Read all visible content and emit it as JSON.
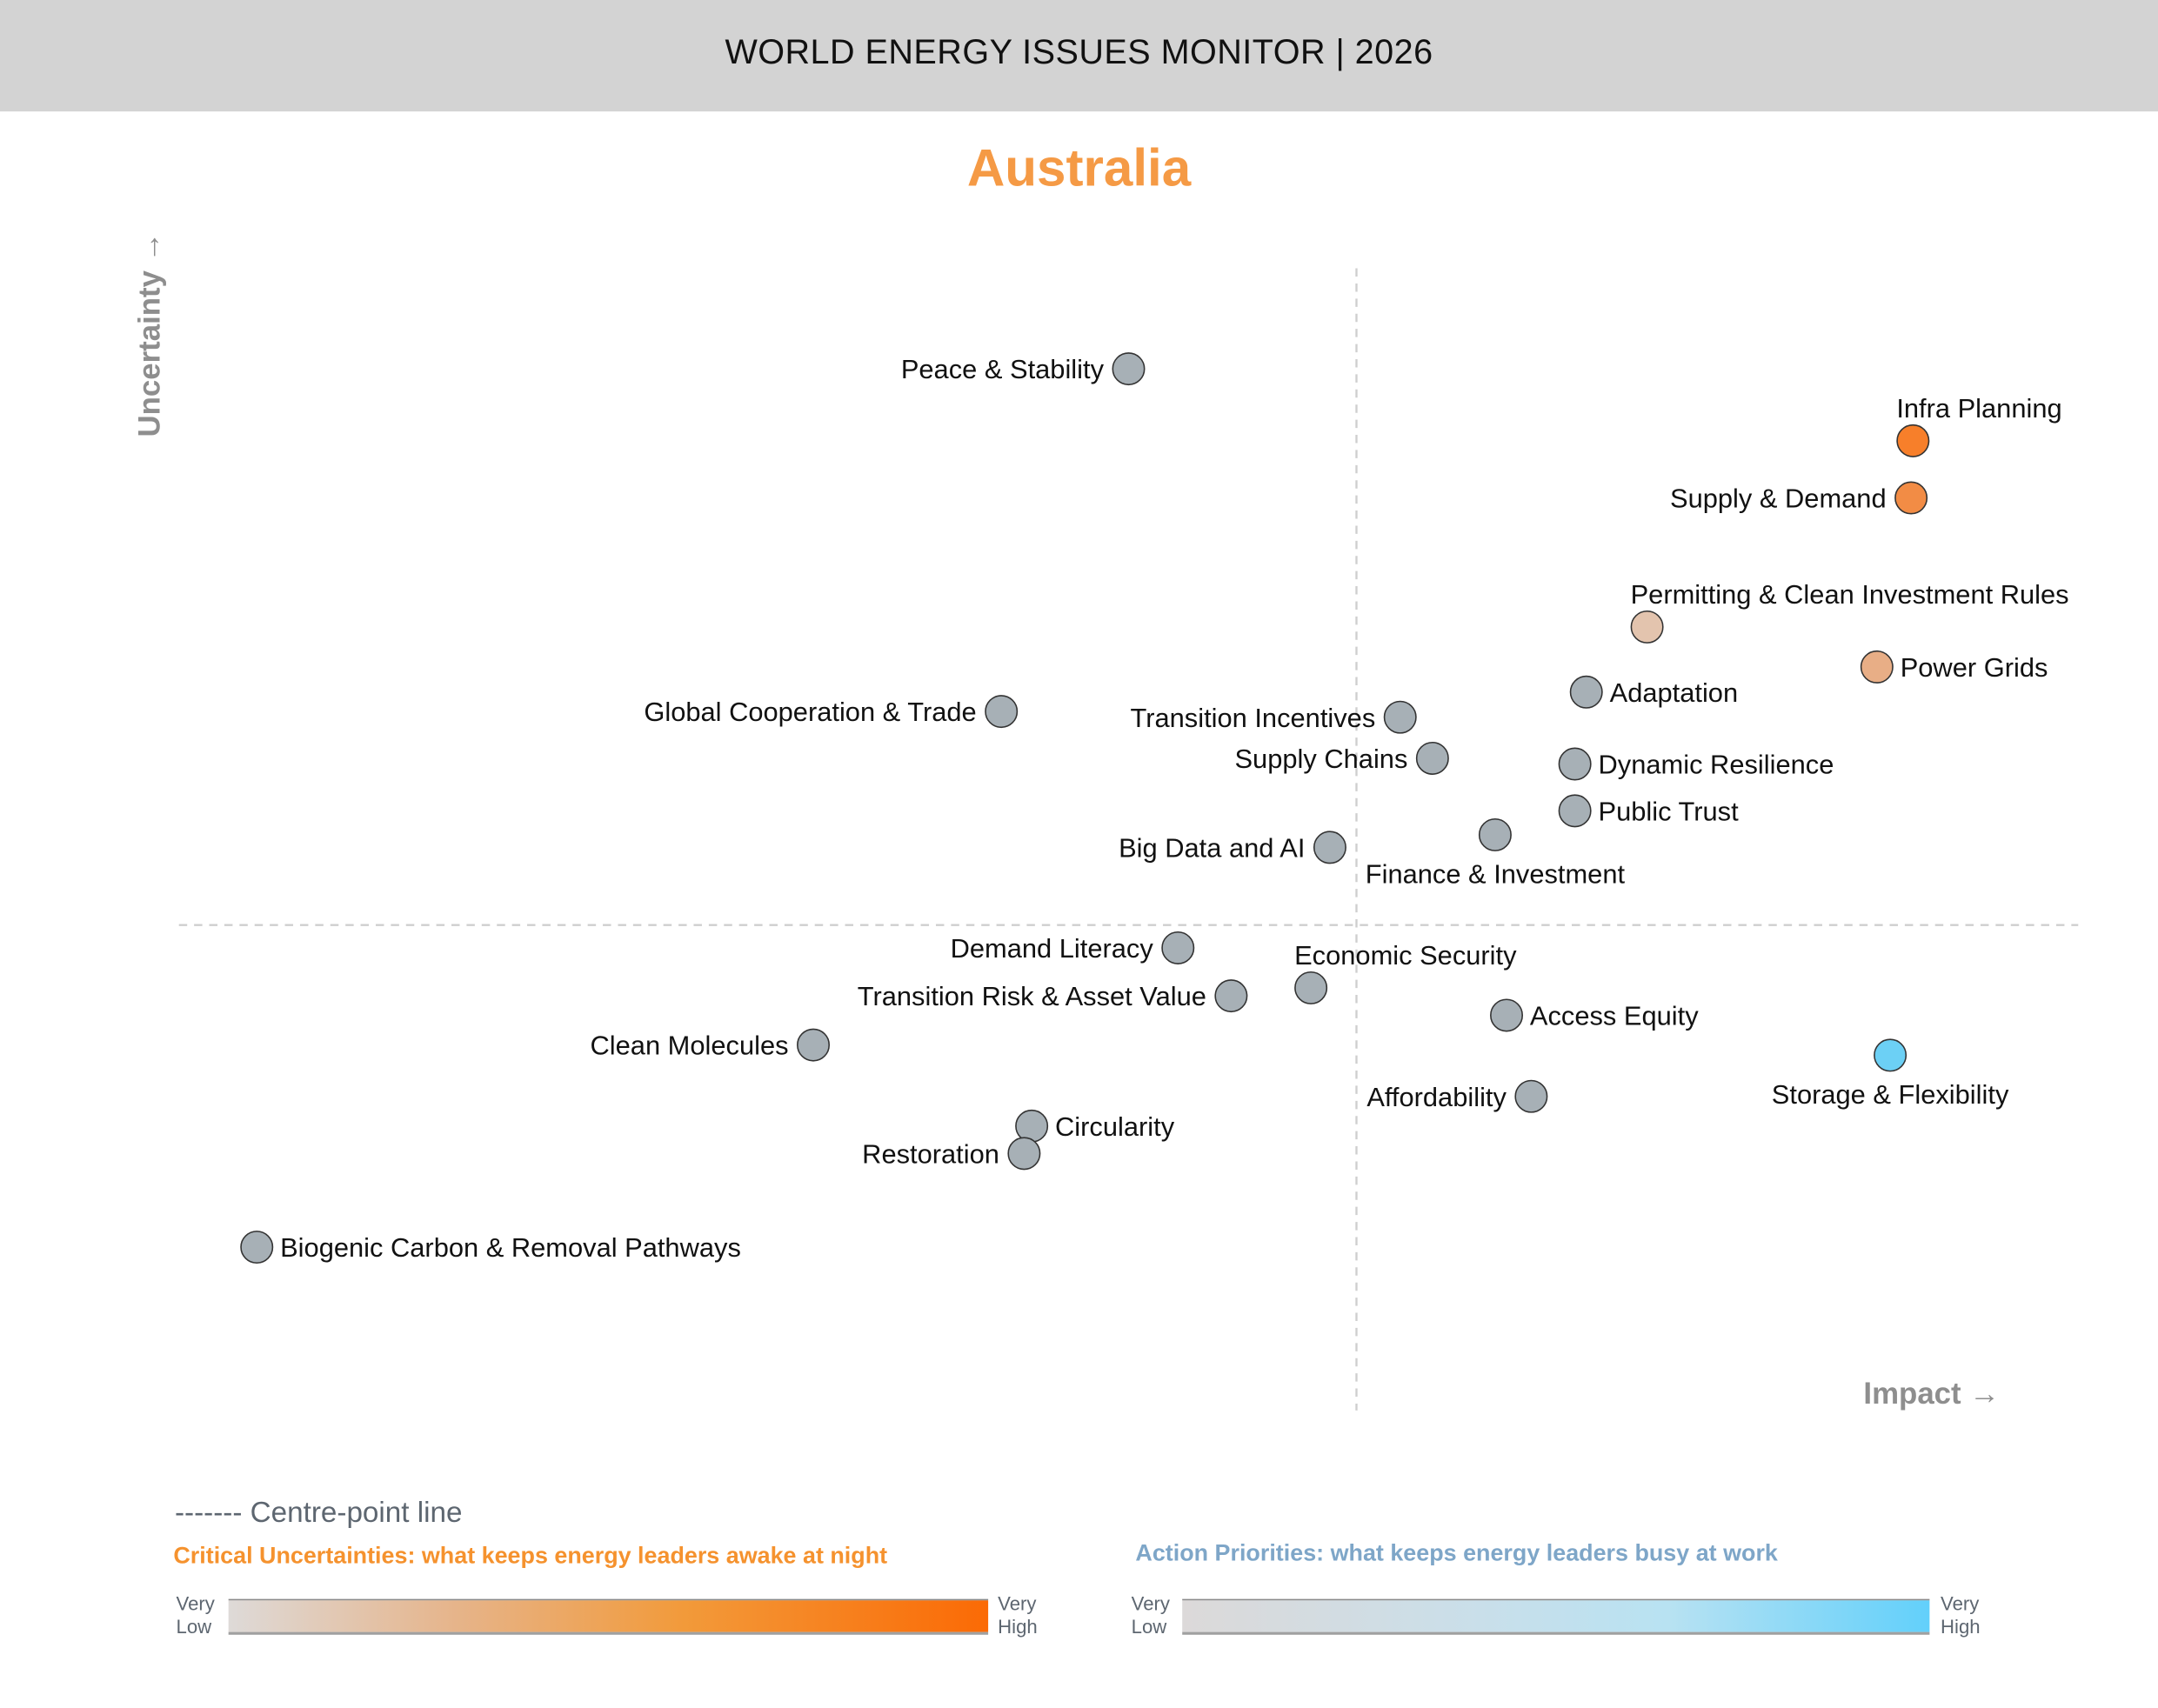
{
  "header": {
    "title": "WORLD ENERGY ISSUES MONITOR | 2026"
  },
  "country": "Australia",
  "chart_data": {
    "type": "scatter",
    "xlabel": "Impact →",
    "ylabel": "Uncertainty →",
    "xlim": [
      0,
      10
    ],
    "ylim": [
      0,
      10
    ],
    "centre": [
      6.2,
      4.25
    ],
    "grid": false,
    "points": [
      {
        "label": "Peace & Stability",
        "x": 5.0,
        "y": 9.12,
        "color": "#a7b0b6",
        "label_pos": "left"
      },
      {
        "label": "Infra Planning",
        "x": 9.13,
        "y": 8.49,
        "color": "#f77f2a",
        "label_pos": "above"
      },
      {
        "label": "Supply & Demand",
        "x": 9.12,
        "y": 7.99,
        "color": "#f28c45",
        "label_pos": "left"
      },
      {
        "label": "Permitting & Clean Investment Rules",
        "x": 7.73,
        "y": 6.86,
        "color": "#e3c4ae",
        "label_pos": "above"
      },
      {
        "label": "Power Grids",
        "x": 8.94,
        "y": 6.51,
        "color": "#e8ae86",
        "label_pos": "right"
      },
      {
        "label": "Adaptation",
        "x": 7.41,
        "y": 6.29,
        "color": "#a7b0b6",
        "label_pos": "right"
      },
      {
        "label": "Global Cooperation & Trade",
        "x": 4.33,
        "y": 6.12,
        "color": "#a7b0b6",
        "label_pos": "left"
      },
      {
        "label": "Transition Incentives",
        "x": 6.43,
        "y": 6.07,
        "color": "#a7b0b6",
        "label_pos": "left"
      },
      {
        "label": "Supply Chains",
        "x": 6.6,
        "y": 5.71,
        "color": "#a7b0b6",
        "label_pos": "left"
      },
      {
        "label": "Dynamic Resilience",
        "x": 7.35,
        "y": 5.66,
        "color": "#a7b0b6",
        "label_pos": "right"
      },
      {
        "label": "Public Trust",
        "x": 7.35,
        "y": 5.25,
        "color": "#a7b0b6",
        "label_pos": "right"
      },
      {
        "label": "Finance & Investment",
        "x": 6.93,
        "y": 5.04,
        "color": "#a7b0b6",
        "label_pos": "below"
      },
      {
        "label": "Big Data and AI",
        "x": 6.06,
        "y": 4.93,
        "color": "#a7b0b6",
        "label_pos": "left"
      },
      {
        "label": "Demand Literacy",
        "x": 5.26,
        "y": 4.05,
        "color": "#a7b0b6",
        "label_pos": "left"
      },
      {
        "label": "Economic Security",
        "x": 5.96,
        "y": 3.7,
        "color": "#a7b0b6",
        "label_pos": "above"
      },
      {
        "label": "Transition Risk & Asset Value",
        "x": 5.54,
        "y": 3.63,
        "color": "#a7b0b6",
        "label_pos": "left"
      },
      {
        "label": "Access Equity",
        "x": 6.99,
        "y": 3.46,
        "color": "#a7b0b6",
        "label_pos": "right"
      },
      {
        "label": "Clean Molecules",
        "x": 3.34,
        "y": 3.2,
        "color": "#a7b0b6",
        "label_pos": "left"
      },
      {
        "label": "Storage & Flexibility",
        "x": 9.01,
        "y": 3.11,
        "color": "#6cd0f5",
        "label_pos": "below"
      },
      {
        "label": "Affordability",
        "x": 7.12,
        "y": 2.75,
        "color": "#a7b0b6",
        "label_pos": "left"
      },
      {
        "label": "Circularity",
        "x": 4.49,
        "y": 2.49,
        "color": "#a7b0b6",
        "label_pos": "right"
      },
      {
        "label": "Restoration",
        "x": 4.45,
        "y": 2.25,
        "color": "#a7b0b6",
        "label_pos": "left"
      },
      {
        "label": "Biogenic Carbon & Removal Pathways",
        "x": 0.41,
        "y": 1.43,
        "color": "#a7b0b6",
        "label_pos": "right"
      }
    ]
  },
  "legend": {
    "centre_line": "------- Centre-point line",
    "critical_title": "Critical Uncertainties: what keeps energy leaders awake at night",
    "action_title": "Action Priorities: what keeps energy leaders busy at work",
    "low": [
      "Very",
      "Low"
    ],
    "high": [
      "Very",
      "High"
    ],
    "critical_colors": [
      "#dedad8",
      "#fb6a05"
    ],
    "action_colors": [
      "#dcd9d9",
      "#62d0fb"
    ]
  }
}
